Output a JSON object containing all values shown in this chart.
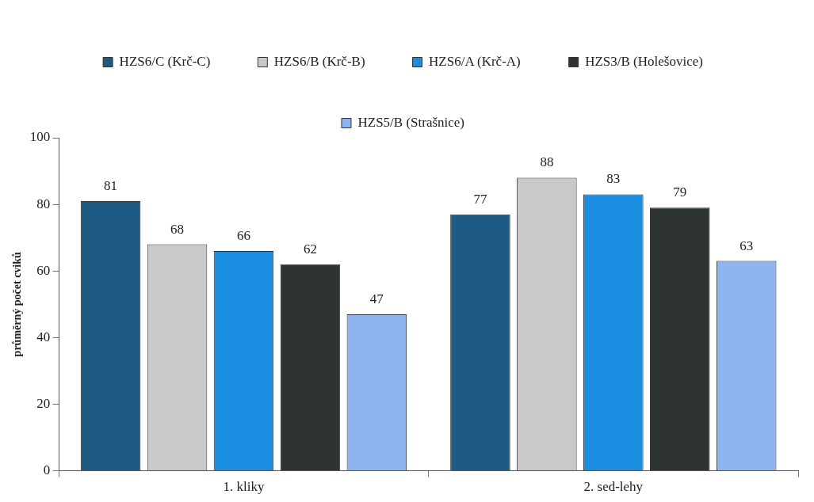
{
  "chart_data": {
    "type": "bar",
    "ylabel": "průměrný počet cviků",
    "categories": [
      "1. kliky",
      "2. sed-lehy"
    ],
    "series": [
      {
        "name": "HZS6/C (Krč-C)",
        "color": "#1f5a84",
        "values": [
          81,
          77
        ]
      },
      {
        "name": "HZS6/B (Krč-B)",
        "color": "#c9c9c9",
        "values": [
          68,
          88
        ]
      },
      {
        "name": "HZS6/A (Krč-A)",
        "color": "#1a8ee0",
        "values": [
          66,
          83
        ]
      },
      {
        "name": "HZS3/B (Holešovice)",
        "color": "#2d3431",
        "values": [
          62,
          79
        ]
      },
      {
        "name": "HZS5/B (Strašnice)",
        "color": "#90b4ee",
        "values": [
          47,
          63
        ]
      }
    ],
    "ylim": [
      0,
      100
    ],
    "yticks": [
      0,
      20,
      40,
      60,
      80,
      100
    ],
    "grid": false,
    "legend": "top",
    "data_labels": true
  }
}
